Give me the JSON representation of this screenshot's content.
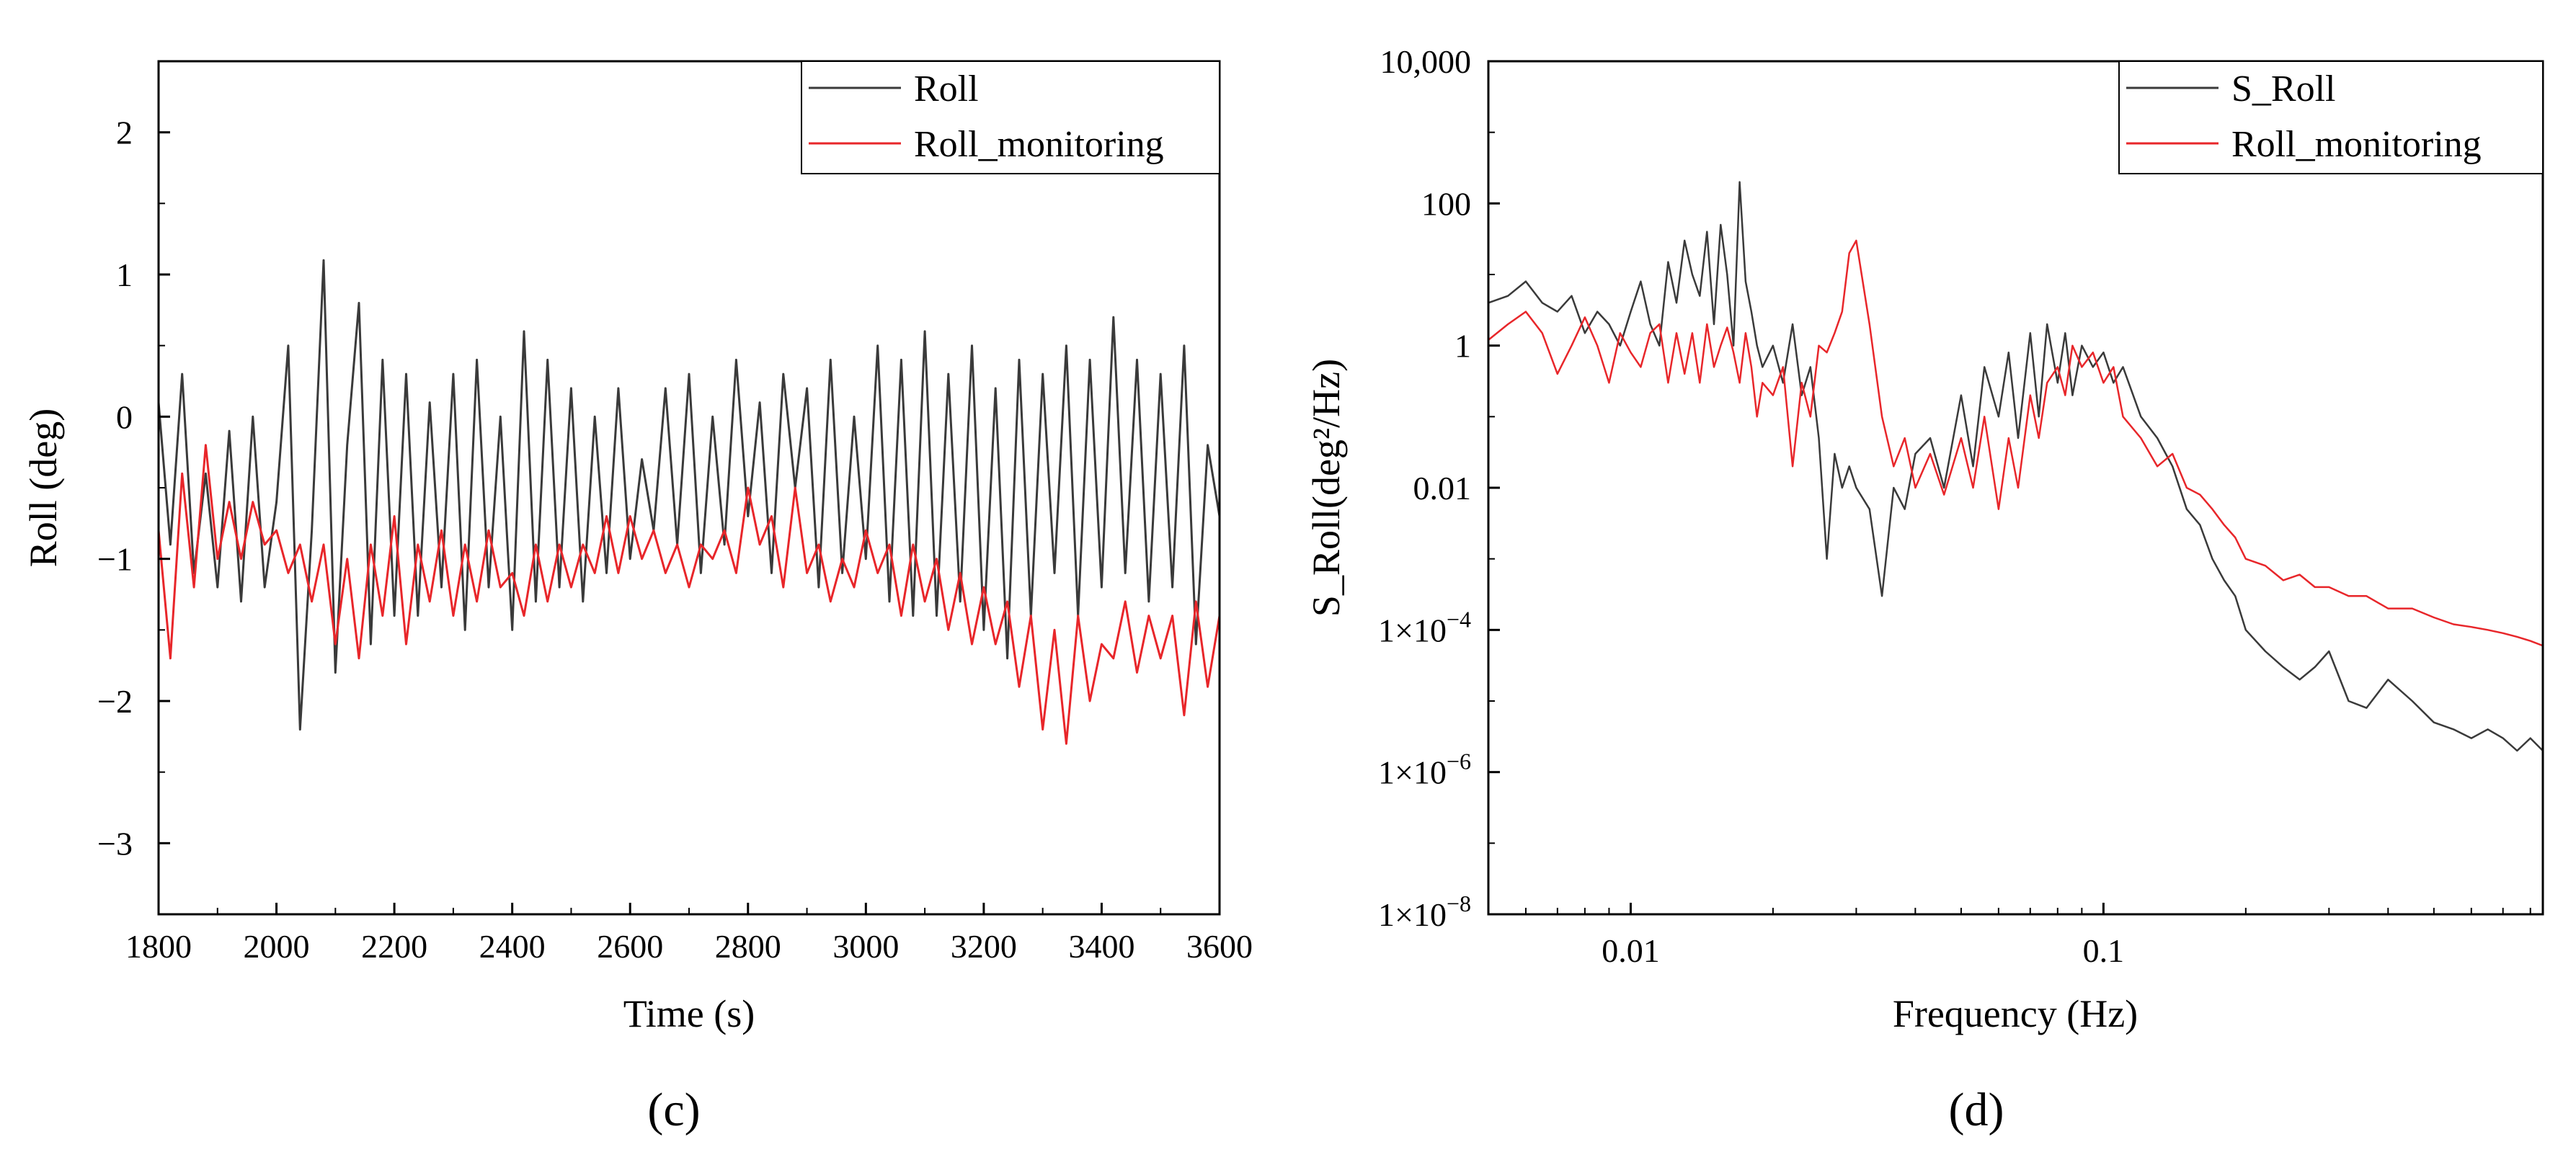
{
  "figure": {
    "panels": [
      "(c)",
      "(d)"
    ]
  },
  "colors": {
    "roll": "#3a3a3a",
    "roll_monitoring": "#e8262a",
    "axis": "#000000",
    "background": "#ffffff"
  },
  "chart_data": [
    {
      "type": "line",
      "caption": "(c)",
      "title": "",
      "xlabel": "Time (s)",
      "ylabel": "Roll (deg)",
      "xlim": [
        1800,
        3600
      ],
      "ylim": [
        -3.5,
        2.5
      ],
      "xticks": [
        1800,
        2000,
        2200,
        2400,
        2600,
        2800,
        3000,
        3200,
        3400,
        3600
      ],
      "xtick_labels": [
        "1800",
        "2000",
        "2200",
        "2400",
        "2600",
        "2800",
        "3000",
        "3200",
        "3400",
        "3600"
      ],
      "yticks": [
        -3,
        -2,
        -1,
        0,
        1,
        2
      ],
      "ytick_labels": [
        "−3",
        "−2",
        "−1",
        "0",
        "1",
        "2"
      ],
      "legend": {
        "position": "top-right",
        "entries": [
          "Roll",
          "Roll_monitoring"
        ]
      },
      "series": [
        {
          "name": "Roll",
          "color": "#3a3a3a",
          "x": [
            1800,
            1820,
            1840,
            1860,
            1880,
            1900,
            1920,
            1940,
            1960,
            1980,
            2000,
            2020,
            2040,
            2060,
            2080,
            2100,
            2120,
            2140,
            2160,
            2180,
            2200,
            2220,
            2240,
            2260,
            2280,
            2300,
            2320,
            2340,
            2360,
            2380,
            2400,
            2420,
            2440,
            2460,
            2480,
            2500,
            2520,
            2540,
            2560,
            2580,
            2600,
            2620,
            2640,
            2660,
            2680,
            2700,
            2720,
            2740,
            2760,
            2780,
            2800,
            2820,
            2840,
            2860,
            2880,
            2900,
            2920,
            2940,
            2960,
            2980,
            3000,
            3020,
            3040,
            3060,
            3080,
            3100,
            3120,
            3140,
            3160,
            3180,
            3200,
            3220,
            3240,
            3260,
            3280,
            3300,
            3320,
            3340,
            3360,
            3380,
            3400,
            3420,
            3440,
            3460,
            3480,
            3500,
            3520,
            3540,
            3560,
            3580,
            3600
          ],
          "y": [
            0.1,
            -0.9,
            0.3,
            -1.1,
            -0.4,
            -1.2,
            -0.1,
            -1.3,
            0.0,
            -1.2,
            -0.6,
            0.5,
            -2.2,
            -0.8,
            1.1,
            -1.8,
            -0.2,
            0.8,
            -1.6,
            0.4,
            -1.4,
            0.3,
            -1.4,
            0.1,
            -1.2,
            0.3,
            -1.5,
            0.4,
            -1.2,
            0.0,
            -1.5,
            0.6,
            -1.3,
            0.4,
            -1.2,
            0.2,
            -1.3,
            0.0,
            -1.1,
            0.2,
            -1.0,
            -0.3,
            -0.8,
            0.2,
            -0.9,
            0.3,
            -1.1,
            0.0,
            -0.9,
            0.4,
            -0.7,
            0.1,
            -1.1,
            0.3,
            -0.5,
            0.2,
            -1.2,
            0.4,
            -1.1,
            0.0,
            -1.0,
            0.5,
            -1.3,
            0.4,
            -1.4,
            0.6,
            -1.4,
            0.3,
            -1.3,
            0.5,
            -1.5,
            0.2,
            -1.7,
            0.4,
            -1.4,
            0.3,
            -1.1,
            0.5,
            -1.4,
            0.4,
            -1.2,
            0.7,
            -1.1,
            0.4,
            -1.3,
            0.3,
            -1.2,
            0.5,
            -1.6,
            -0.2,
            -0.7
          ]
        },
        {
          "name": "Roll_monitoring",
          "color": "#e8262a",
          "x": [
            1800,
            1820,
            1840,
            1860,
            1880,
            1900,
            1920,
            1940,
            1960,
            1980,
            2000,
            2020,
            2040,
            2060,
            2080,
            2100,
            2120,
            2140,
            2160,
            2180,
            2200,
            2220,
            2240,
            2260,
            2280,
            2300,
            2320,
            2340,
            2360,
            2380,
            2400,
            2420,
            2440,
            2460,
            2480,
            2500,
            2520,
            2540,
            2560,
            2580,
            2600,
            2620,
            2640,
            2660,
            2680,
            2700,
            2720,
            2740,
            2760,
            2780,
            2800,
            2820,
            2840,
            2860,
            2880,
            2900,
            2920,
            2940,
            2960,
            2980,
            3000,
            3020,
            3040,
            3060,
            3080,
            3100,
            3120,
            3140,
            3160,
            3180,
            3200,
            3220,
            3240,
            3260,
            3280,
            3300,
            3320,
            3340,
            3360,
            3380,
            3400,
            3420,
            3440,
            3460,
            3480,
            3500,
            3520,
            3540,
            3560,
            3580,
            3600
          ],
          "y": [
            -0.8,
            -1.7,
            -0.4,
            -1.2,
            -0.2,
            -1.0,
            -0.6,
            -1.0,
            -0.6,
            -0.9,
            -0.8,
            -1.1,
            -0.9,
            -1.3,
            -0.9,
            -1.6,
            -1.0,
            -1.7,
            -0.9,
            -1.4,
            -0.7,
            -1.6,
            -0.9,
            -1.3,
            -0.8,
            -1.4,
            -0.9,
            -1.3,
            -0.8,
            -1.2,
            -1.1,
            -1.4,
            -0.9,
            -1.3,
            -0.9,
            -1.2,
            -0.9,
            -1.1,
            -0.7,
            -1.1,
            -0.7,
            -1.0,
            -0.8,
            -1.1,
            -0.9,
            -1.2,
            -0.9,
            -1.0,
            -0.8,
            -1.1,
            -0.5,
            -0.9,
            -0.7,
            -1.2,
            -0.5,
            -1.1,
            -0.9,
            -1.3,
            -1.0,
            -1.2,
            -0.8,
            -1.1,
            -0.9,
            -1.4,
            -0.9,
            -1.3,
            -1.0,
            -1.5,
            -1.1,
            -1.6,
            -1.2,
            -1.6,
            -1.3,
            -1.9,
            -1.4,
            -2.2,
            -1.5,
            -2.3,
            -1.4,
            -2.0,
            -1.6,
            -1.7,
            -1.3,
            -1.8,
            -1.4,
            -1.7,
            -1.4,
            -2.1,
            -1.3,
            -1.9,
            -1.4
          ]
        }
      ]
    },
    {
      "type": "line",
      "caption": "(d)",
      "title": "",
      "xlabel": "Frequency (Hz)",
      "ylabel": "S_Roll(deg²/Hz)",
      "xscale": "log",
      "yscale": "log",
      "xlim": [
        0.005,
        0.85
      ],
      "ylim": [
        1e-08,
        10000
      ],
      "xticks": [
        0.01,
        0.1
      ],
      "xtick_labels": [
        "0.01",
        "0.1"
      ],
      "yticks": [
        1e-08,
        1e-06,
        0.0001,
        0.01,
        1,
        100,
        10000
      ],
      "ytick_labels": [
        {
          "base": "1×10",
          "exp": "−8"
        },
        {
          "base": "1×10",
          "exp": "−6"
        },
        {
          "base": "1×10",
          "exp": "−4"
        },
        {
          "base": "0.01",
          "exp": ""
        },
        {
          "base": "1",
          "exp": ""
        },
        {
          "base": "100",
          "exp": ""
        },
        {
          "base": "10,000",
          "exp": ""
        }
      ],
      "legend": {
        "position": "top-right",
        "entries": [
          "S_Roll",
          "Roll_monitoring"
        ]
      },
      "series": [
        {
          "name": "S_Roll",
          "color": "#3a3a3a",
          "x": [
            0.005,
            0.0055,
            0.006,
            0.0065,
            0.007,
            0.0075,
            0.008,
            0.0085,
            0.009,
            0.0095,
            0.01,
            0.0105,
            0.011,
            0.0115,
            0.012,
            0.0125,
            0.013,
            0.0135,
            0.014,
            0.0145,
            0.015,
            0.0155,
            0.016,
            0.0165,
            0.017,
            0.0175,
            0.018,
            0.0185,
            0.019,
            0.02,
            0.021,
            0.022,
            0.023,
            0.024,
            0.025,
            0.026,
            0.027,
            0.028,
            0.029,
            0.03,
            0.032,
            0.034,
            0.036,
            0.038,
            0.04,
            0.043,
            0.046,
            0.05,
            0.053,
            0.056,
            0.06,
            0.063,
            0.066,
            0.07,
            0.073,
            0.076,
            0.08,
            0.083,
            0.086,
            0.09,
            0.095,
            0.1,
            0.105,
            0.11,
            0.12,
            0.13,
            0.14,
            0.15,
            0.16,
            0.17,
            0.18,
            0.19,
            0.2,
            0.22,
            0.24,
            0.26,
            0.28,
            0.3,
            0.33,
            0.36,
            0.4,
            0.45,
            0.5,
            0.55,
            0.6,
            0.65,
            0.7,
            0.75,
            0.8,
            0.85
          ],
          "y": [
            4,
            5,
            8,
            4,
            3,
            5,
            1.5,
            3,
            2,
            1,
            3,
            8,
            2,
            1,
            15,
            4,
            30,
            10,
            5,
            40,
            2,
            50,
            10,
            1,
            200,
            8,
            3,
            1,
            0.5,
            1,
            0.3,
            2,
            0.2,
            0.5,
            0.05,
            0.001,
            0.03,
            0.01,
            0.02,
            0.01,
            0.005,
            0.0003,
            0.01,
            0.005,
            0.03,
            0.05,
            0.01,
            0.2,
            0.02,
            0.5,
            0.1,
            0.8,
            0.05,
            1.5,
            0.1,
            2,
            0.3,
            1.5,
            0.2,
            1,
            0.5,
            0.8,
            0.3,
            0.5,
            0.1,
            0.05,
            0.02,
            0.005,
            0.003,
            0.001,
            0.0005,
            0.0003,
            0.0001,
            5e-05,
            3e-05,
            2e-05,
            3e-05,
            5e-05,
            1e-05,
            8e-06,
            2e-05,
            1e-05,
            5e-06,
            4e-06,
            3e-06,
            4e-06,
            3e-06,
            2e-06,
            3e-06,
            2e-06
          ]
        },
        {
          "name": "Roll_monitoring",
          "color": "#e8262a",
          "x": [
            0.005,
            0.0055,
            0.006,
            0.0065,
            0.007,
            0.0075,
            0.008,
            0.0085,
            0.009,
            0.0095,
            0.01,
            0.0105,
            0.011,
            0.0115,
            0.012,
            0.0125,
            0.013,
            0.0135,
            0.014,
            0.0145,
            0.015,
            0.0155,
            0.016,
            0.0165,
            0.017,
            0.0175,
            0.018,
            0.0185,
            0.019,
            0.02,
            0.021,
            0.022,
            0.023,
            0.024,
            0.025,
            0.026,
            0.027,
            0.028,
            0.029,
            0.03,
            0.032,
            0.034,
            0.036,
            0.038,
            0.04,
            0.043,
            0.046,
            0.05,
            0.053,
            0.056,
            0.06,
            0.063,
            0.066,
            0.07,
            0.073,
            0.076,
            0.08,
            0.083,
            0.086,
            0.09,
            0.095,
            0.1,
            0.105,
            0.11,
            0.12,
            0.13,
            0.14,
            0.15,
            0.16,
            0.17,
            0.18,
            0.19,
            0.2,
            0.22,
            0.24,
            0.26,
            0.28,
            0.3,
            0.33,
            0.36,
            0.4,
            0.45,
            0.5,
            0.55,
            0.6,
            0.65,
            0.7,
            0.75,
            0.8,
            0.85
          ],
          "y": [
            1.2,
            2,
            3,
            1.5,
            0.4,
            1,
            2.5,
            1,
            0.3,
            1.5,
            0.8,
            0.5,
            1.5,
            2,
            0.3,
            1.5,
            0.4,
            1.5,
            0.3,
            2,
            0.5,
            1,
            1.8,
            0.8,
            0.3,
            1.5,
            0.5,
            0.1,
            0.3,
            0.2,
            0.5,
            0.02,
            0.3,
            0.1,
            1,
            0.8,
            1.5,
            3,
            20,
            30,
            2,
            0.1,
            0.02,
            0.05,
            0.01,
            0.03,
            0.008,
            0.05,
            0.01,
            0.1,
            0.005,
            0.05,
            0.01,
            0.2,
            0.05,
            0.3,
            0.5,
            0.2,
            1,
            0.5,
            0.8,
            0.3,
            0.5,
            0.1,
            0.05,
            0.02,
            0.03,
            0.01,
            0.008,
            0.005,
            0.003,
            0.002,
            0.001,
            0.0008,
            0.0005,
            0.0006,
            0.0004,
            0.0004,
            0.0003,
            0.0003,
            0.0002,
            0.0002,
            0.00015,
            0.00012,
            0.00011,
            0.0001,
            9e-05,
            8e-05,
            7e-05,
            6e-05
          ]
        }
      ]
    }
  ]
}
